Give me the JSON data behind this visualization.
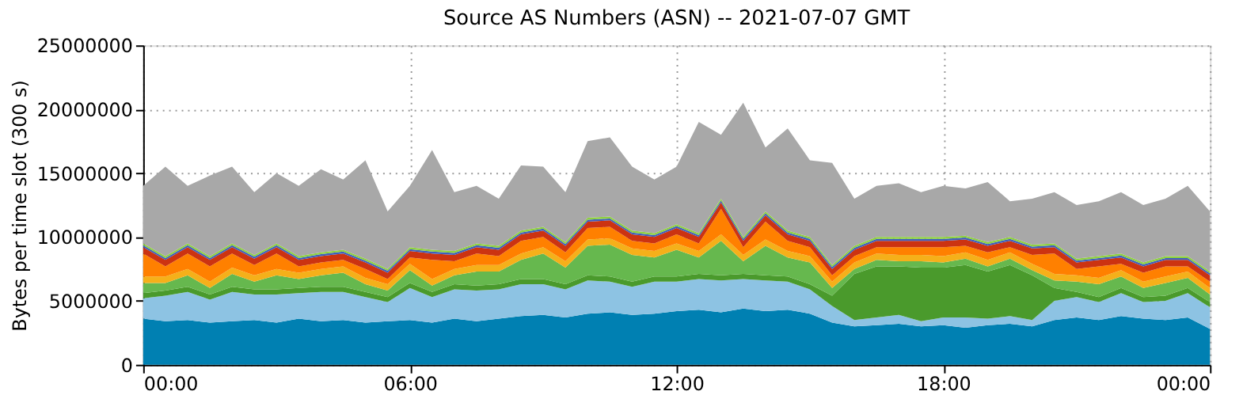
{
  "chart_data": {
    "type": "area",
    "stacked": true,
    "title": "Source AS Numbers (ASN) -- 2021-07-07 GMT",
    "ylabel": "Bytes per time slot (300 s)",
    "x": [
      0,
      0.5,
      1,
      1.5,
      2,
      2.5,
      3,
      3.5,
      4,
      4.5,
      5,
      5.5,
      6,
      6.5,
      7,
      7.5,
      8,
      8.5,
      9,
      9.5,
      10,
      10.5,
      11,
      11.5,
      12,
      12.5,
      13,
      13.5,
      14,
      14.5,
      15,
      15.5,
      16,
      16.5,
      17,
      17.5,
      18,
      18.5,
      19,
      19.5,
      20,
      20.5,
      21,
      21.5,
      22,
      22.5,
      23,
      23.5,
      24
    ],
    "xlim": [
      0,
      24
    ],
    "xticks": [
      {
        "value": 0,
        "label": "00:00"
      },
      {
        "value": 6,
        "label": "06:00"
      },
      {
        "value": 12,
        "label": "12:00"
      },
      {
        "value": 18,
        "label": "18:00"
      },
      {
        "value": 24,
        "label": "00:00"
      }
    ],
    "ylim": [
      0,
      25000000
    ],
    "yticks": [
      0,
      5000000,
      10000000,
      15000000,
      20000000,
      25000000
    ],
    "grid": true,
    "legend": false,
    "series": [
      {
        "color": "#0080b2",
        "values": [
          3600000.0,
          3400000.0,
          3500000.0,
          3300000.0,
          3400000.0,
          3500000.0,
          3300000.0,
          3600000.0,
          3400000.0,
          3500000.0,
          3300000.0,
          3400000.0,
          3500000.0,
          3300000.0,
          3600000.0,
          3400000.0,
          3600000.0,
          3800000.0,
          3900000.0,
          3700000.0,
          4000000.0,
          4100000.0,
          3900000.0,
          4000000.0,
          4200000.0,
          4300000.0,
          4100000.0,
          4400000.0,
          4200000.0,
          4300000.0,
          4000000.0,
          3300000.0,
          3000000.0,
          3100000.0,
          3200000.0,
          3000000.0,
          3100000.0,
          2900000.0,
          3100000.0,
          3200000.0,
          3000000.0,
          3500000.0,
          3700000.0,
          3500000.0,
          3800000.0,
          3600000.0,
          3500000.0,
          3700000.0,
          2800000.0
        ]
      },
      {
        "color": "#8dc3e3",
        "values": [
          1600000.0,
          2000000.0,
          2200000.0,
          1800000.0,
          2300000.0,
          2000000.0,
          2200000.0,
          2000000.0,
          2300000.0,
          2200000.0,
          2000000.0,
          1500000.0,
          2500000.0,
          2000000.0,
          2300000.0,
          2400000.0,
          2300000.0,
          2500000.0,
          2400000.0,
          2200000.0,
          2600000.0,
          2400000.0,
          2200000.0,
          2500000.0,
          2300000.0,
          2400000.0,
          2500000.0,
          2300000.0,
          2400000.0,
          2200000.0,
          1900000.0,
          1300000.0,
          500000.0,
          600000.0,
          700000.0,
          400000.0,
          600000.0,
          800000.0,
          500000.0,
          600000.0,
          500000.0,
          1500000.0,
          1600000.0,
          1400000.0,
          1800000.0,
          1300000.0,
          1500000.0,
          1900000.0,
          1700000.0
        ]
      },
      {
        "color": "#4a9a2c",
        "values": [
          400000.0,
          400000.0,
          400000.0,
          400000.0,
          400000.0,
          400000.0,
          400000.0,
          400000.0,
          400000.0,
          400000.0,
          400000.0,
          400000.0,
          400000.0,
          400000.0,
          400000.0,
          400000.0,
          400000.0,
          400000.0,
          400000.0,
          400000.0,
          400000.0,
          400000.0,
          400000.0,
          400000.0,
          400000.0,
          400000.0,
          400000.0,
          400000.0,
          400000.0,
          400000.0,
          400000.0,
          800000.0,
          3600000.0,
          4000000.0,
          3800000.0,
          4200000.0,
          3900000.0,
          4100000.0,
          3700000.0,
          4000000.0,
          3500000.0,
          1000000.0,
          400000.0,
          400000.0,
          400000.0,
          400000.0,
          400000.0,
          400000.0,
          400000.0
        ]
      },
      {
        "color": "#66b84e",
        "values": [
          800000.0,
          600000.0,
          900000.0,
          500000.0,
          1000000.0,
          600000.0,
          1100000.0,
          700000.0,
          900000.0,
          1100000.0,
          600000.0,
          500000.0,
          1000000.0,
          500000.0,
          700000.0,
          1100000.0,
          1000000.0,
          1500000.0,
          2000000.0,
          1300000.0,
          2300000.0,
          2500000.0,
          2100000.0,
          1500000.0,
          2100000.0,
          1300000.0,
          2700000.0,
          1000000.0,
          2300000.0,
          1500000.0,
          1700000.0,
          600000.0,
          400000.0,
          500000.0,
          400000.0,
          500000.0,
          400000.0,
          500000.0,
          400000.0,
          500000.0,
          400000.0,
          600000.0,
          800000.0,
          1000000.0,
          900000.0,
          700000.0,
          1000000.0,
          800000.0,
          600000.0
        ]
      },
      {
        "color": "#f5b01a",
        "values": [
          500000.0,
          500000.0,
          500000.0,
          500000.0,
          500000.0,
          500000.0,
          500000.0,
          500000.0,
          500000.0,
          500000.0,
          500000.0,
          500000.0,
          500000.0,
          500000.0,
          500000.0,
          500000.0,
          500000.0,
          500000.0,
          500000.0,
          500000.0,
          500000.0,
          500000.0,
          500000.0,
          500000.0,
          500000.0,
          500000.0,
          500000.0,
          500000.0,
          500000.0,
          500000.0,
          500000.0,
          500000.0,
          500000.0,
          500000.0,
          500000.0,
          500000.0,
          500000.0,
          500000.0,
          500000.0,
          500000.0,
          500000.0,
          500000.0,
          500000.0,
          500000.0,
          500000.0,
          500000.0,
          500000.0,
          500000.0,
          500000.0
        ]
      },
      {
        "color": "#ff8000",
        "values": [
          1800000.0,
          800000.0,
          1200000.0,
          1200000.0,
          1100000.0,
          800000.0,
          1200000.0,
          500000.0,
          500000.0,
          500000.0,
          700000.0,
          400000.0,
          500000.0,
          1500000.0,
          600000.0,
          900000.0,
          700000.0,
          1000000.0,
          800000.0,
          700000.0,
          900000.0,
          900000.0,
          600000.0,
          600000.0,
          700000.0,
          600000.0,
          2000000.0,
          600000.0,
          1400000.0,
          800000.0,
          700000.0,
          500000.0,
          500000.0,
          500000.0,
          600000.0,
          600000.0,
          700000.0,
          500000.0,
          600000.0,
          400000.0,
          700000.0,
          1600000.0,
          500000.0,
          900000.0,
          500000.0,
          700000.0,
          800000.0,
          400000.0,
          500000.0
        ]
      },
      {
        "color": "#cc3311",
        "values": [
          500000.0,
          500000.0,
          500000.0,
          500000.0,
          500000.0,
          500000.0,
          500000.0,
          500000.0,
          500000.0,
          500000.0,
          500000.0,
          500000.0,
          500000.0,
          500000.0,
          500000.0,
          500000.0,
          500000.0,
          500000.0,
          500000.0,
          500000.0,
          500000.0,
          500000.0,
          500000.0,
          500000.0,
          500000.0,
          500000.0,
          500000.0,
          500000.0,
          500000.0,
          500000.0,
          500000.0,
          500000.0,
          500000.0,
          500000.0,
          500000.0,
          500000.0,
          500000.0,
          500000.0,
          500000.0,
          500000.0,
          500000.0,
          500000.0,
          500000.0,
          500000.0,
          500000.0,
          500000.0,
          500000.0,
          500000.0,
          500000.0
        ]
      },
      {
        "color": "#3d5fbf",
        "values": [
          150000.0,
          150000.0,
          150000.0,
          150000.0,
          150000.0,
          150000.0,
          150000.0,
          150000.0,
          150000.0,
          150000.0,
          150000.0,
          150000.0,
          150000.0,
          150000.0,
          150000.0,
          150000.0,
          150000.0,
          150000.0,
          150000.0,
          150000.0,
          150000.0,
          150000.0,
          150000.0,
          150000.0,
          150000.0,
          150000.0,
          150000.0,
          150000.0,
          150000.0,
          150000.0,
          150000.0,
          150000.0,
          150000.0,
          150000.0,
          150000.0,
          150000.0,
          150000.0,
          150000.0,
          150000.0,
          150000.0,
          150000.0,
          150000.0,
          150000.0,
          150000.0,
          150000.0,
          150000.0,
          150000.0,
          150000.0,
          150000.0
        ]
      },
      {
        "color": "#8fd13f",
        "values": [
          150000.0,
          150000.0,
          150000.0,
          150000.0,
          150000.0,
          150000.0,
          150000.0,
          150000.0,
          150000.0,
          150000.0,
          150000.0,
          150000.0,
          150000.0,
          150000.0,
          150000.0,
          150000.0,
          150000.0,
          150000.0,
          150000.0,
          150000.0,
          150000.0,
          150000.0,
          150000.0,
          150000.0,
          150000.0,
          150000.0,
          150000.0,
          150000.0,
          150000.0,
          150000.0,
          150000.0,
          150000.0,
          150000.0,
          150000.0,
          150000.0,
          150000.0,
          150000.0,
          150000.0,
          150000.0,
          150000.0,
          150000.0,
          150000.0,
          150000.0,
          150000.0,
          150000.0,
          150000.0,
          150000.0,
          150000.0,
          150000.0
        ]
      },
      {
        "color": "#a8a8a8",
        "values": [
          4500000.0,
          7000000.0,
          4500000.0,
          6300000.0,
          6000000.0,
          4900000.0,
          5500000.0,
          5500000.0,
          6500000.0,
          5500000.0,
          7700000.0,
          4500000.0,
          4800000.0,
          7800000.0,
          4600000.0,
          4500000.0,
          3700000.0,
          5100000.0,
          4700000.0,
          3900000.0,
          6000000.0,
          6200000.0,
          5000000.0,
          4200000.0,
          4500000.0,
          8700000.0,
          5000000.0,
          10500000.0,
          5000000.0,
          8000000.0,
          6000000.0,
          8000000.0,
          3700000.0,
          4000000.0,
          4200000.0,
          3500000.0,
          4000000.0,
          3700000.0,
          4700000.0,
          2800000.0,
          3600000.0,
          4000000.0,
          4200000.0,
          4300000.0,
          4800000.0,
          4500000.0,
          4500000.0,
          5500000.0,
          4700000.0
        ]
      }
    ]
  }
}
